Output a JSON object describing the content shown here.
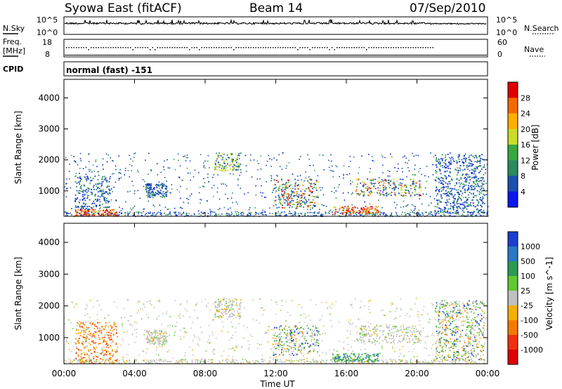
{
  "header": {
    "station": "Syowa East (fitACF)",
    "beam": "Beam 14",
    "date": "07/Sep/2010"
  },
  "noise_panel": {
    "left_label": "N.Sky",
    "left_ticks": [
      "10^5",
      "10^0"
    ],
    "right_label": "N.Search",
    "right_ticks": [
      "10^5",
      "10^0"
    ]
  },
  "freq_panel": {
    "left_label_line1": "Freq.",
    "left_label_line2": "[MHz]",
    "left_ticks": [
      "18",
      "8"
    ],
    "right_label": "Nave",
    "right_ticks": [
      "60",
      "0"
    ]
  },
  "cpid_panel": {
    "label": "CPID",
    "text": "normal (fast) -151"
  },
  "chart_data": [
    {
      "type": "heatmap",
      "panel": "power",
      "xlabel": "Time UT",
      "ylabel": "Slant Range [km]",
      "colorbar_label": "Power [dB]",
      "colorbar_ticks": [
        "28",
        "24",
        "20",
        "16",
        "12",
        "8",
        "4"
      ],
      "colorbar_colors": [
        "#e00000",
        "#f56a00",
        "#ffb000",
        "#c8dc28",
        "#38a840",
        "#2a8a60",
        "#1a50b0",
        "#0a18f0"
      ],
      "x_ticks": [
        "00:00",
        "04:00",
        "08:00",
        "12:00",
        "16:00",
        "20:00",
        "00:00"
      ],
      "y_ticks": [
        "1000",
        "2000",
        "3000",
        "4000"
      ],
      "xlim": [
        0,
        24
      ],
      "ylim": [
        180,
        4600
      ],
      "echo_regions": [
        {
          "t0": 0.6,
          "t1": 3.0,
          "r0": 200,
          "r1": 420,
          "level": "high"
        },
        {
          "t0": 0.6,
          "t1": 2.6,
          "r0": 420,
          "r1": 1500,
          "level": "low"
        },
        {
          "t0": 4.6,
          "t1": 5.8,
          "r0": 800,
          "r1": 1250,
          "level": "low"
        },
        {
          "t0": 8.5,
          "t1": 10.0,
          "r0": 1650,
          "r1": 2250,
          "level": "mid"
        },
        {
          "t0": 11.8,
          "t1": 14.4,
          "r0": 450,
          "r1": 1400,
          "level": "mixed"
        },
        {
          "t0": 15.2,
          "t1": 17.8,
          "r0": 250,
          "r1": 520,
          "level": "high"
        },
        {
          "t0": 16.5,
          "t1": 20.2,
          "r0": 850,
          "r1": 1400,
          "level": "mixed"
        },
        {
          "t0": 21.0,
          "t1": 23.8,
          "r0": 300,
          "r1": 2200,
          "level": "low"
        }
      ]
    },
    {
      "type": "heatmap",
      "panel": "velocity",
      "xlabel": "Time UT",
      "ylabel": "Slant Range [km]",
      "colorbar_label": "Velocity [m s^-1]",
      "colorbar_ticks": [
        "1000",
        "500",
        "100",
        "25",
        "-25",
        "-100",
        "-500",
        "-1000"
      ],
      "colorbar_colors": [
        "#1a3fd0",
        "#2a78c8",
        "#2a9a55",
        "#60c830",
        "#c0c0c0",
        "#f5b000",
        "#f57a00",
        "#f03010",
        "#e00000"
      ],
      "x_ticks": [
        "00:00",
        "04:00",
        "08:00",
        "12:00",
        "16:00",
        "20:00",
        "00:00"
      ],
      "y_ticks": [
        "1000",
        "2000",
        "3000",
        "4000"
      ],
      "xlim": [
        0,
        24
      ],
      "ylim": [
        180,
        4600
      ],
      "echo_regions": [
        {
          "t0": 0.6,
          "t1": 3.0,
          "r0": 200,
          "r1": 1500,
          "level": "negative"
        },
        {
          "t0": 4.6,
          "t1": 5.8,
          "r0": 800,
          "r1": 1250,
          "level": "near-zero"
        },
        {
          "t0": 8.5,
          "t1": 10.0,
          "r0": 1650,
          "r1": 2250,
          "level": "near-zero"
        },
        {
          "t0": 11.8,
          "t1": 14.4,
          "r0": 450,
          "r1": 1400,
          "level": "mixed"
        },
        {
          "t0": 15.2,
          "t1": 17.8,
          "r0": 250,
          "r1": 520,
          "level": "positive"
        },
        {
          "t0": 16.5,
          "t1": 20.2,
          "r0": 850,
          "r1": 1400,
          "level": "near-zero"
        },
        {
          "t0": 21.0,
          "t1": 23.8,
          "r0": 300,
          "r1": 2200,
          "level": "mixed"
        }
      ]
    }
  ]
}
